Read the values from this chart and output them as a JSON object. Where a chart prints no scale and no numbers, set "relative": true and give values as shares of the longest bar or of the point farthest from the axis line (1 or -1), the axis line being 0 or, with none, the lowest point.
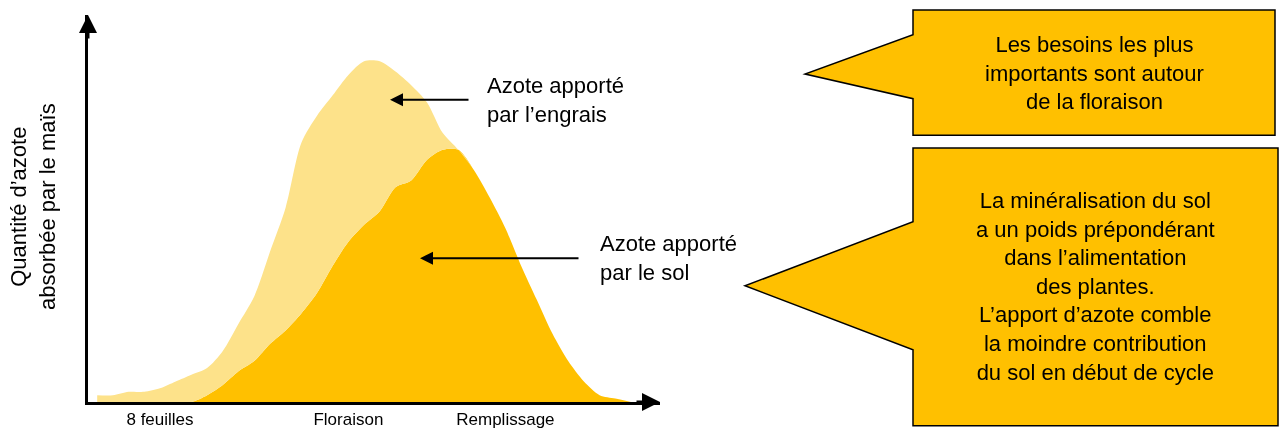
{
  "chart_data": {
    "type": "area",
    "stacked": true,
    "relative": true,
    "legend": false,
    "ylabel": "Quantité d’azote\nabsorbée par le maïs",
    "categories": [
      null,
      null,
      null,
      null,
      "8 feuilles",
      null,
      null,
      null,
      null,
      null,
      null,
      null,
      null,
      null,
      null,
      null,
      "Floraison",
      null,
      null,
      null,
      null,
      null,
      null,
      null,
      null,
      null,
      "Remplissage",
      null,
      null,
      null,
      null,
      null,
      null,
      null,
      null
    ],
    "series": [
      {
        "name": "Azote apporté\npar le sol",
        "color": "#ffc000",
        "values": [
          0,
          0,
          0,
          0,
          0,
          0,
          0,
          0.02,
          0.05,
          0.09,
          0.12,
          0.17,
          0.21,
          0.26,
          0.32,
          0.4,
          0.47,
          0.52,
          0.56,
          0.63,
          0.65,
          0.71,
          0.74,
          0.74,
          0.68,
          0.6,
          0.51,
          0.4,
          0.3,
          0.2,
          0.12,
          0.06,
          0.02,
          0.01,
          0
        ]
      },
      {
        "name": "Azote apporté\npar l’engrais",
        "color": "#fde28a",
        "values": [
          0.02,
          0.02,
          0.03,
          0.03,
          0.04,
          0.06,
          0.08,
          0.08,
          0.1,
          0.14,
          0.19,
          0.27,
          0.36,
          0.5,
          0.52,
          0.5,
          0.49,
          0.48,
          0.44,
          0.34,
          0.28,
          0.17,
          0.05,
          0,
          0,
          0,
          0,
          0,
          0,
          0,
          0,
          0,
          0,
          0,
          0
        ]
      }
    ],
    "annotations": [
      "Les besoins les plus\nimportants sont autour\nde la floraison",
      "La minéralisation du sol\na un poids prépondérant\ndans l’alimentation\ndes plantes.\nL’apport d’azote comble\nla moindre contribution\ndu sol en début de cycle"
    ]
  }
}
